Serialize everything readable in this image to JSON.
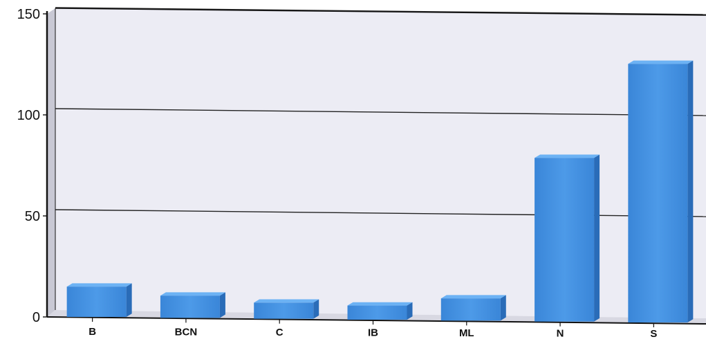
{
  "chart_data": {
    "type": "bar",
    "title": "",
    "xlabel": "",
    "ylabel": "",
    "categories": [
      "B",
      "BCN",
      "C",
      "IB",
      "ML",
      "N",
      "S"
    ],
    "values": [
      15,
      11,
      8,
      7,
      11,
      81,
      128
    ],
    "ylim": [
      0,
      150
    ],
    "yticks": [
      0,
      50,
      100,
      150
    ],
    "grid": true,
    "legend": "none",
    "bar_color": "#3f8fe0",
    "wall_color": "#ececf4"
  }
}
